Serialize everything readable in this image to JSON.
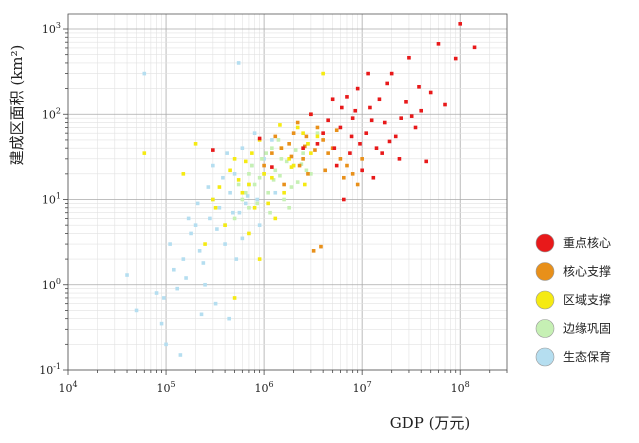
{
  "chart_data": {
    "type": "scatter",
    "title": "",
    "xlabel": "GDP (万元)",
    "ylabel": "建成区面积 (km²)",
    "x_scale": "log",
    "y_scale": "log",
    "xlim": [
      10000,
      300000000
    ],
    "ylim": [
      0.1,
      1500
    ],
    "x_ticks": [
      {
        "value": 10000,
        "base": "10",
        "exp": "4"
      },
      {
        "value": 100000,
        "base": "10",
        "exp": "5"
      },
      {
        "value": 1000000,
        "base": "10",
        "exp": "6"
      },
      {
        "value": 10000000,
        "base": "10",
        "exp": "7"
      },
      {
        "value": 100000000,
        "base": "10",
        "exp": "8"
      }
    ],
    "y_ticks": [
      {
        "value": 0.1,
        "base": "10",
        "exp": "-1"
      },
      {
        "value": 1,
        "base": "10",
        "exp": "0"
      },
      {
        "value": 10,
        "base": "10",
        "exp": "1"
      },
      {
        "value": 100,
        "base": "10",
        "exp": "2"
      },
      {
        "value": 1000,
        "base": "10",
        "exp": "3"
      }
    ],
    "grid": true,
    "legend_position": "right",
    "series": [
      {
        "name": "重点核心",
        "color": "#e8191a",
        "points": [
          [
            100000000,
            1150
          ],
          [
            140000000,
            610
          ],
          [
            60000000,
            670
          ],
          [
            30000000,
            460
          ],
          [
            20000000,
            300
          ],
          [
            50000000,
            180
          ],
          [
            70000000,
            130
          ],
          [
            40000000,
            110
          ],
          [
            15000000,
            150
          ],
          [
            25000000,
            90
          ],
          [
            18000000,
            230
          ],
          [
            12000000,
            120
          ],
          [
            9000000,
            200
          ],
          [
            8000000,
            90
          ],
          [
            6000000,
            70
          ],
          [
            5000000,
            150
          ],
          [
            4000000,
            60
          ],
          [
            3500000,
            45
          ],
          [
            3000000,
            100
          ],
          [
            2500000,
            40
          ],
          [
            11000000,
            60
          ],
          [
            9500000,
            45
          ],
          [
            7500000,
            35
          ],
          [
            14000000,
            40
          ],
          [
            22000000,
            55
          ],
          [
            35000000,
            70
          ],
          [
            45000000,
            28
          ],
          [
            10000000,
            22
          ],
          [
            6500000,
            10
          ],
          [
            13000000,
            18
          ],
          [
            17000000,
            80
          ],
          [
            8500000,
            110
          ],
          [
            5500000,
            25
          ],
          [
            28000000,
            140
          ],
          [
            90000000,
            450
          ],
          [
            16000000,
            35
          ],
          [
            7000000,
            160
          ],
          [
            19000000,
            48
          ],
          [
            24000000,
            30
          ],
          [
            4500000,
            85
          ],
          [
            300000,
            38
          ],
          [
            900000,
            52
          ],
          [
            1200000,
            24
          ],
          [
            38000000,
            210
          ],
          [
            11500000,
            300
          ],
          [
            32000000,
            95
          ],
          [
            7800000,
            55
          ],
          [
            5200000,
            40
          ],
          [
            12500000,
            85
          ],
          [
            6200000,
            120
          ]
        ]
      },
      {
        "name": "核心支撑",
        "color": "#e8901a",
        "points": [
          [
            3000000,
            100
          ],
          [
            2000000,
            60
          ],
          [
            1500000,
            40
          ],
          [
            2500000,
            30
          ],
          [
            4000000,
            50
          ],
          [
            5000000,
            40
          ],
          [
            6000000,
            30
          ],
          [
            1000000,
            25
          ],
          [
            1800000,
            45
          ],
          [
            3500000,
            70
          ],
          [
            2800000,
            20
          ],
          [
            4500000,
            35
          ],
          [
            7000000,
            25
          ],
          [
            8000000,
            20
          ],
          [
            1200000,
            35
          ],
          [
            2200000,
            80
          ],
          [
            9000000,
            15
          ],
          [
            3200000,
            2.5
          ],
          [
            3800000,
            2.8
          ],
          [
            1600000,
            15
          ],
          [
            2700000,
            55
          ],
          [
            5500000,
            65
          ],
          [
            6500000,
            18
          ],
          [
            1300000,
            55
          ],
          [
            2300000,
            25
          ],
          [
            3300000,
            38
          ],
          [
            4200000,
            22
          ],
          [
            10000000,
            30
          ],
          [
            1900000,
            32
          ],
          [
            2600000,
            42
          ]
        ]
      },
      {
        "name": "区域支撑",
        "color": "#f5ea12",
        "points": [
          [
            60000,
            35
          ],
          [
            150000,
            20
          ],
          [
            300000,
            10
          ],
          [
            500000,
            30
          ],
          [
            700000,
            15
          ],
          [
            1000000,
            20
          ],
          [
            1500000,
            40
          ],
          [
            2000000,
            25
          ],
          [
            3000000,
            35
          ],
          [
            4000000,
            300
          ],
          [
            2500000,
            60
          ],
          [
            800000,
            8
          ],
          [
            400000,
            5
          ],
          [
            250000,
            3
          ],
          [
            600000,
            12
          ],
          [
            900000,
            50
          ],
          [
            1200000,
            18
          ],
          [
            1800000,
            30
          ],
          [
            700000,
            4
          ],
          [
            350000,
            14
          ],
          [
            200000,
            45
          ],
          [
            1100000,
            9
          ],
          [
            2200000,
            70
          ],
          [
            3500000,
            55
          ],
          [
            450000,
            22
          ],
          [
            650000,
            28
          ],
          [
            1600000,
            12
          ],
          [
            2800000,
            45
          ],
          [
            500000,
            0.7
          ],
          [
            900000,
            2
          ],
          [
            1300000,
            6
          ],
          [
            750000,
            35
          ],
          [
            550000,
            17
          ],
          [
            1900000,
            24
          ],
          [
            2600000,
            15
          ],
          [
            320000,
            8
          ],
          [
            1450000,
            75
          ]
        ]
      },
      {
        "name": "边缘巩固",
        "color": "#c6f0b4",
        "points": [
          [
            1000000,
            20
          ],
          [
            1500000,
            30
          ],
          [
            2000000,
            25
          ],
          [
            800000,
            15
          ],
          [
            600000,
            10
          ],
          [
            1200000,
            40
          ],
          [
            2500000,
            35
          ],
          [
            3000000,
            20
          ],
          [
            700000,
            8
          ],
          [
            900000,
            18
          ],
          [
            1100000,
            12
          ],
          [
            1300000,
            22
          ],
          [
            1700000,
            28
          ],
          [
            2200000,
            16
          ],
          [
            500000,
            6
          ],
          [
            400000,
            5
          ],
          [
            1400000,
            50
          ],
          [
            1900000,
            14
          ],
          [
            2800000,
            45
          ],
          [
            650000,
            12
          ],
          [
            750000,
            25
          ],
          [
            950000,
            30
          ],
          [
            1600000,
            10
          ],
          [
            2100000,
            38
          ],
          [
            3500000,
            60
          ],
          [
            850000,
            9
          ],
          [
            1250000,
            17
          ],
          [
            1800000,
            8
          ],
          [
            2400000,
            26
          ],
          [
            550000,
            15
          ],
          [
            1050000,
            35
          ],
          [
            1450000,
            19
          ],
          [
            700000,
            20
          ],
          [
            1150000,
            7
          ],
          [
            2700000,
            22
          ]
        ]
      },
      {
        "name": "生态保育",
        "color": "#b5def0",
        "points": [
          [
            60000,
            300
          ],
          [
            40000,
            1.3
          ],
          [
            50000,
            0.5
          ],
          [
            100000,
            0.2
          ],
          [
            150000,
            2
          ],
          [
            200000,
            5
          ],
          [
            300000,
            10
          ],
          [
            500000,
            20
          ],
          [
            400000,
            3
          ],
          [
            250000,
            1
          ],
          [
            120000,
            1.5
          ],
          [
            80000,
            0.8
          ],
          [
            600000,
            40
          ],
          [
            700000,
            15
          ],
          [
            1000000,
            30
          ],
          [
            350000,
            8
          ],
          [
            450000,
            12
          ],
          [
            180000,
            4
          ],
          [
            220000,
            2.5
          ],
          [
            280000,
            6
          ],
          [
            90000,
            0.35
          ],
          [
            130000,
            0.9
          ],
          [
            160000,
            1.2
          ],
          [
            550000,
            400
          ],
          [
            750000,
            25
          ],
          [
            850000,
            10
          ],
          [
            320000,
            0.6
          ],
          [
            380000,
            18
          ],
          [
            480000,
            7
          ],
          [
            1200000,
            50
          ],
          [
            900000,
            5
          ],
          [
            650000,
            9
          ],
          [
            110000,
            3
          ],
          [
            140000,
            0.15
          ],
          [
            230000,
            0.45
          ],
          [
            270000,
            14
          ],
          [
            420000,
            35
          ],
          [
            520000,
            2
          ],
          [
            95000,
            0.7
          ],
          [
            170000,
            6
          ],
          [
            210000,
            9
          ],
          [
            300000,
            25
          ],
          [
            600000,
            3.5
          ],
          [
            800000,
            60
          ],
          [
            1300000,
            12
          ],
          [
            240000,
            1.8
          ],
          [
            330000,
            4.5
          ],
          [
            440000,
            0.4
          ],
          [
            560000,
            7
          ],
          [
            680000,
            11
          ]
        ]
      }
    ]
  }
}
